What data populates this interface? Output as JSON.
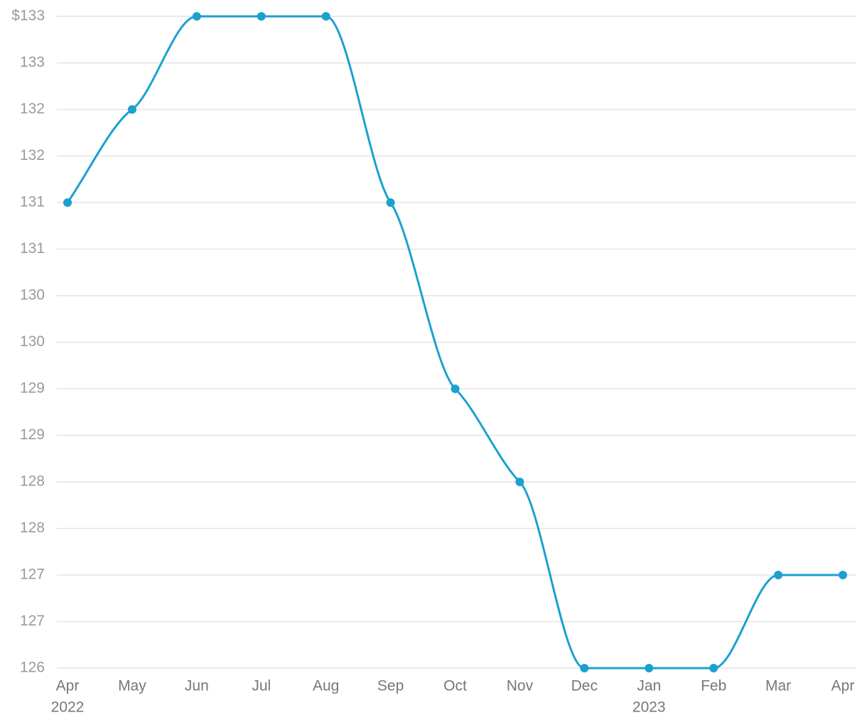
{
  "chart_data": {
    "type": "line",
    "categories": [
      "Apr",
      "May",
      "Jun",
      "Jul",
      "Aug",
      "Sep",
      "Oct",
      "Nov",
      "Dec",
      "Jan",
      "Feb",
      "Mar",
      "Apr"
    ],
    "years": [
      "2022",
      null,
      null,
      null,
      null,
      null,
      null,
      null,
      null,
      "2023",
      null,
      null,
      null
    ],
    "series": [
      {
        "color": "#1ba1cf",
        "values": [
          131,
          132,
          133,
          133,
          133,
          131,
          129,
          128,
          126,
          126,
          126,
          127,
          127
        ]
      }
    ],
    "ylim": [
      126,
      133
    ],
    "yticks": [
      {
        "value": 126,
        "label": "126"
      },
      {
        "value": 126.5,
        "label": "127"
      },
      {
        "value": 127,
        "label": "127"
      },
      {
        "value": 127.5,
        "label": "128"
      },
      {
        "value": 128,
        "label": "128"
      },
      {
        "value": 128.5,
        "label": "129"
      },
      {
        "value": 129,
        "label": "129"
      },
      {
        "value": 129.5,
        "label": "130"
      },
      {
        "value": 130,
        "label": "130"
      },
      {
        "value": 130.5,
        "label": "131"
      },
      {
        "value": 131,
        "label": "131"
      },
      {
        "value": 131.5,
        "label": "132"
      },
      {
        "value": 132,
        "label": "132"
      },
      {
        "value": 132.5,
        "label": "133"
      },
      {
        "value": 133,
        "label": "$133"
      }
    ],
    "grid": true
  }
}
